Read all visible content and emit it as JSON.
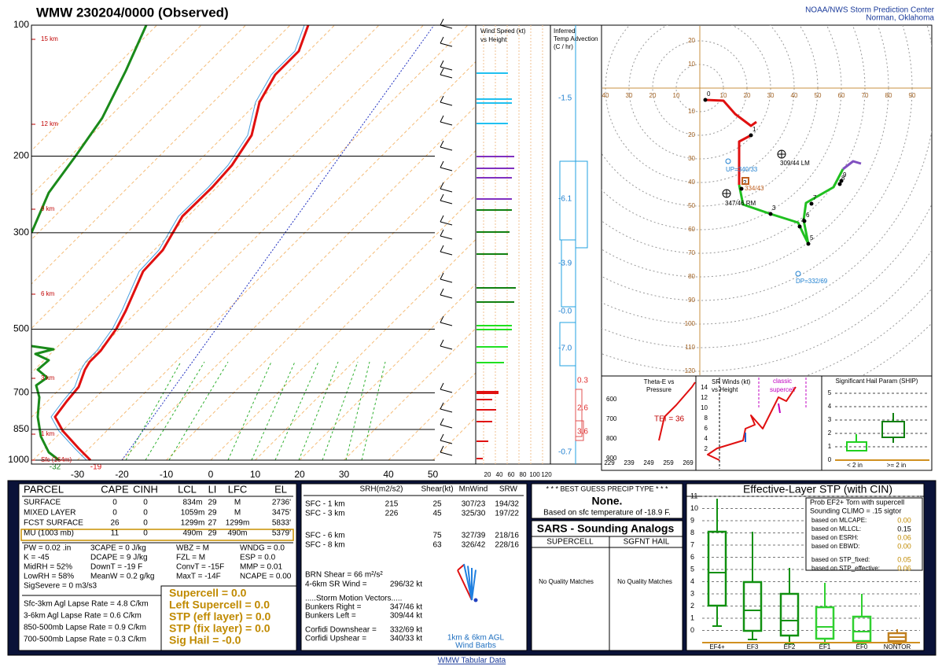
{
  "header": {
    "title": "WMW   230204/0000  (Observed)",
    "org": "NOAA/NWS Storm Prediction Center",
    "location": "Norman, Oklahoma"
  },
  "skewt": {
    "pressure_levels": [
      100,
      200,
      300,
      500,
      700,
      850,
      1000
    ],
    "temps": [
      -30,
      -20,
      -10,
      0,
      10,
      20,
      30,
      40,
      50
    ],
    "height_labels": [
      "15 km",
      "12 km",
      "9 km",
      "6 km",
      "3 km",
      "1 km",
      "Sfc (164m)"
    ],
    "sfc_td": "-32",
    "sfc_t": "-19"
  },
  "wind_speed": {
    "title": "Wind Speed (kt)",
    "subtitle": "vs Height",
    "x_labels": [
      "20",
      "40",
      "60",
      "80",
      "100",
      "120"
    ]
  },
  "temp_advection": {
    "title": "Inferred",
    "subtitle": "Temp Advection",
    "units": "(C / hr)",
    "values": [
      "-1.5",
      "-6.1",
      "-3.9",
      "-0.0",
      "-7.0",
      "0.3",
      "2.6",
      "3.6",
      "-0.7"
    ]
  },
  "hodograph": {
    "x_labels": [
      "40",
      "30",
      "20",
      "10",
      "10",
      "20",
      "30",
      "40",
      "50",
      "60",
      "70",
      "80",
      "90"
    ],
    "y_labels": [
      "20",
      "10",
      "10",
      "20",
      "30",
      "40",
      "50",
      "60",
      "70",
      "80",
      "90",
      "100",
      "110",
      "120"
    ],
    "point_labels": [
      "0",
      "1",
      "2",
      "3",
      "4",
      "5",
      "6",
      "7",
      "8",
      "9"
    ],
    "annotations": [
      "309/44 LM",
      "347/46 RM",
      "UP=340/33",
      "334/43",
      "DP=332/69"
    ]
  },
  "theta_e": {
    "title": "Theta-E vs",
    "subtitle": "Pressure",
    "y_labels": [
      "600",
      "700",
      "800",
      "900"
    ],
    "x_labels": [
      "229",
      "239",
      "249",
      "259",
      "269"
    ],
    "tei": "TEI = 36"
  },
  "sr_winds": {
    "title": "SR Winds (kt)",
    "subtitle": "vs Height",
    "y_labels": [
      "14",
      "12",
      "10",
      "8",
      "6",
      "4",
      "2"
    ],
    "classic": "classic",
    "supercell": "supercell"
  },
  "ship": {
    "title": "Significant Hail Param (SHIP)",
    "y_labels": [
      "5",
      "4",
      "3",
      "2",
      "1",
      "0"
    ],
    "legend": [
      "< 2 in",
      ">= 2 in"
    ]
  },
  "parcel": {
    "header": [
      "PARCEL",
      "CAPE",
      "CINH",
      "LCL",
      "LI",
      "LFC",
      "EL"
    ],
    "rows": [
      [
        "SURFACE",
        "0",
        "0",
        "834m",
        "29",
        "M",
        "2736'"
      ],
      [
        "MIXED LAYER",
        "0",
        "0",
        "1059m",
        "29",
        "M",
        "3475'"
      ],
      [
        "FCST SURFACE",
        "26",
        "0",
        "1299m",
        "27",
        "1299m",
        "5833'"
      ],
      [
        "MU   (1003 mb)",
        "11",
        "0",
        "490m",
        "29",
        "490m",
        "5379'"
      ]
    ]
  },
  "indices": [
    [
      "PW = 0.02 .in",
      "K = -45",
      "MidRH = 52%",
      "LowRH = 58%",
      "SigSevere = 0 m3/s3"
    ],
    [
      "3CAPE = 0 J/kg",
      "DCAPE = 9 J/kg",
      "DownT = -19 F",
      "MeanW = 0.2 g/kg"
    ],
    [
      "WBZ = M",
      "FZL = M",
      "ConvT = -15F",
      "MaxT = -14F"
    ],
    [
      "WNDG = 0.0",
      "ESP = 0.0",
      "MMP = 0.01",
      "NCAPE = 0.00"
    ]
  ],
  "lapse_rates": [
    "Sfc-3km Agl Lapse Rate = 4.8 C/km",
    "3-6km Agl Lapse Rate = 0.6 C/km",
    "850-500mb Lapse Rate = 0.9 C/km",
    "700-500mb Lapse Rate = 0.3 C/km"
  ],
  "composites": [
    "Supercell = 0.0",
    "Left Supercell = 0.0",
    "STP (eff layer) = 0.0",
    "STP (fix layer) = 0.0",
    "Sig Hail = -0.0"
  ],
  "kinematics": {
    "header": [
      "SRH(m2/s2)",
      "Shear(kt)",
      "MnWind",
      "SRW"
    ],
    "rows": [
      [
        "SFC - 1 km",
        "215",
        "25",
        "307/23",
        "194/32"
      ],
      [
        "SFC - 3 km",
        "226",
        "45",
        "325/30",
        "197/22"
      ],
      [
        "SFC - 6 km",
        null,
        "75",
        "327/39",
        "218/16"
      ],
      [
        "SFC - 8 km",
        null,
        "63",
        "326/42",
        "228/16"
      ]
    ],
    "brn": "BRN Shear = 66 m²/s²",
    "sr46_label": "4-6km SR Wind =",
    "sr46": "296/32 kt",
    "smv": ".....Storm Motion Vectors.....",
    "vectors": [
      [
        "Bunkers Right =",
        "347/46 kt"
      ],
      [
        "Bunkers Left =",
        "309/44 kt"
      ],
      [
        "Corfidi Downshear =",
        "332/69 kt"
      ],
      [
        "Corfidi Upshear =",
        "340/33 kt"
      ]
    ],
    "barb_note": [
      "1km & 6km AGL",
      "Wind Barbs"
    ]
  },
  "precip": {
    "title": "* * * BEST GUESS PRECIP TYPE * * *",
    "value": "None.",
    "note": "Based on sfc temperature of -18.9 F."
  },
  "sars": {
    "title": "SARS - Sounding Analogs",
    "columns": [
      "SUPERCELL",
      "SGFNT HAIL"
    ],
    "matches": [
      "No Quality Matches",
      "No Quality Matches"
    ]
  },
  "stp": {
    "title": "Effective-Layer STP (with CIN)",
    "prob": "Prob EF2+ Torn with supercell",
    "climo": "Sounding CLIMO = .15 sigtor",
    "rows": [
      [
        "based on MLCAPE:",
        "0.00"
      ],
      [
        "based on MLLCL:",
        "0.15"
      ],
      [
        "based on ESRH:",
        "0.06"
      ],
      [
        "based on EBWD:",
        "0.00"
      ],
      [
        "based on STP_fixed:",
        "0.05"
      ],
      [
        "based on STP_effective:",
        "0.06"
      ]
    ],
    "y_labels": [
      "11",
      "10",
      "9",
      "8",
      "7",
      "6",
      "5",
      "4",
      "3",
      "2",
      "1",
      "0"
    ],
    "x_labels": [
      "EF4+",
      "EF3",
      "EF2",
      "EF1",
      "EF0",
      "NONTOR"
    ]
  },
  "footer": "WMW Tabular Data"
}
